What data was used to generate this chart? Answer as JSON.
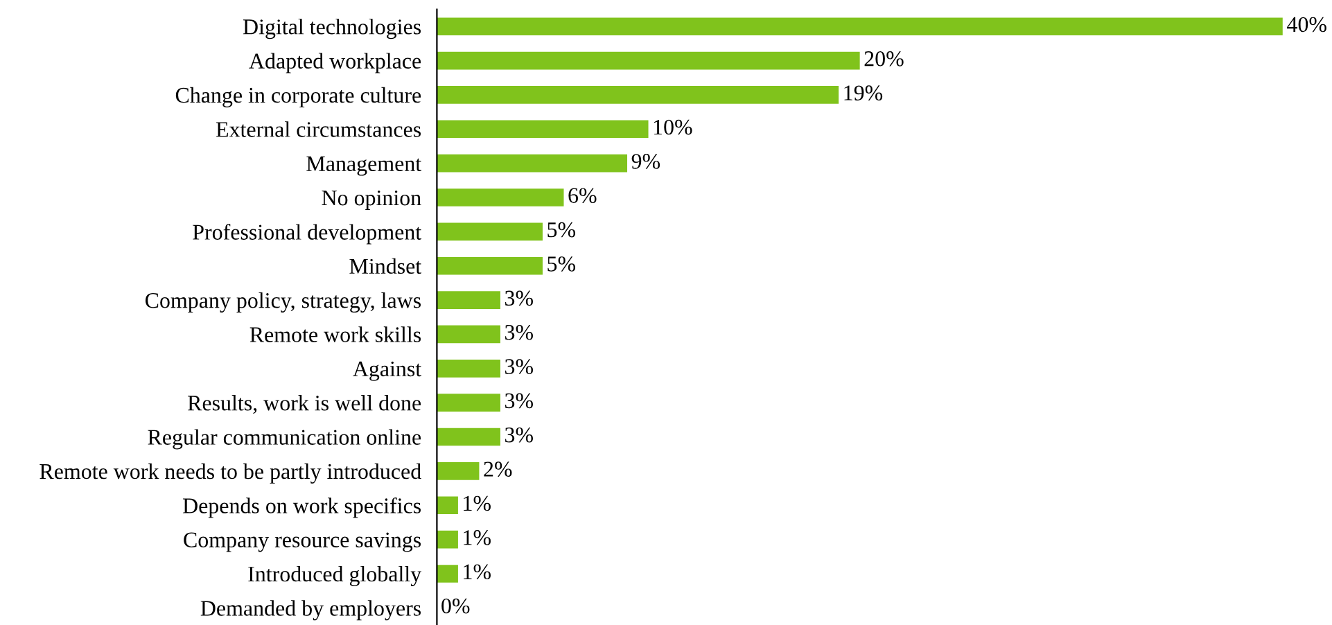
{
  "chart_data": {
    "type": "bar",
    "orientation": "horizontal",
    "color": "#80c31c",
    "categories": [
      "Digital technologies",
      "Adapted workplace",
      "Change in corporate culture",
      "External circumstances",
      "Management",
      "No opinion",
      "Professional development",
      "Mindset",
      "Company policy, strategy, laws",
      "Remote work skills",
      "Against",
      "Results, work is well done",
      "Regular communication online",
      "Remote work needs to be partly introduced",
      "Depends on work specifics",
      "Company resource savings",
      "Introduced globally",
      "Demanded by employers"
    ],
    "values": [
      40,
      20,
      19,
      10,
      9,
      6,
      5,
      5,
      3,
      3,
      3,
      3,
      3,
      2,
      1,
      1,
      1,
      0
    ],
    "value_labels": [
      "40%",
      "20%",
      "19%",
      "10%",
      "9%",
      "6%",
      "5%",
      "5%",
      "3%",
      "3%",
      "3%",
      "3%",
      "3%",
      "2%",
      "1%",
      "1%",
      "1%",
      "0%"
    ],
    "grid": false,
    "legend": false
  }
}
